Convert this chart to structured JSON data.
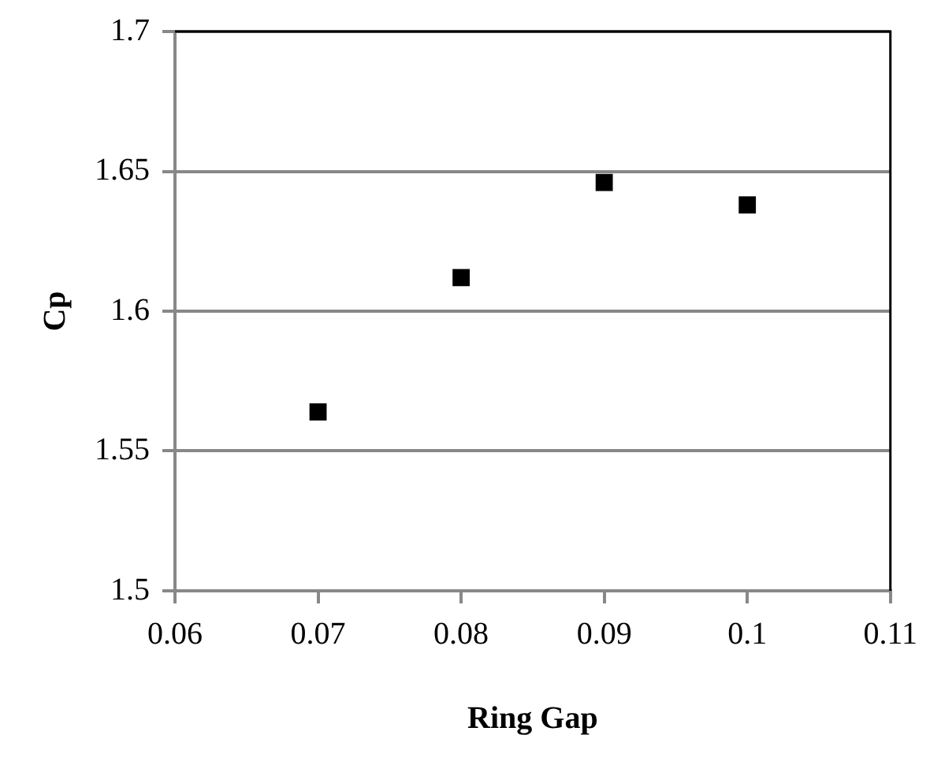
{
  "chart_data": {
    "type": "scatter",
    "xlabel": "Ring Gap",
    "ylabel": "Cp",
    "x": [
      0.07,
      0.08,
      0.09,
      0.1
    ],
    "series": [
      {
        "color": "#000000",
        "values": [
          1.564,
          1.612,
          1.646,
          1.638
        ]
      }
    ],
    "xlim": [
      0.06,
      0.11
    ],
    "xticks": [
      0.06,
      0.07,
      0.08,
      0.09,
      0.1,
      0.11
    ],
    "ylim": [
      1.5,
      1.7
    ],
    "yticks": [
      1.5,
      1.55,
      1.6,
      1.65,
      1.7
    ],
    "grid": "y",
    "legend": false,
    "marker": "square"
  }
}
